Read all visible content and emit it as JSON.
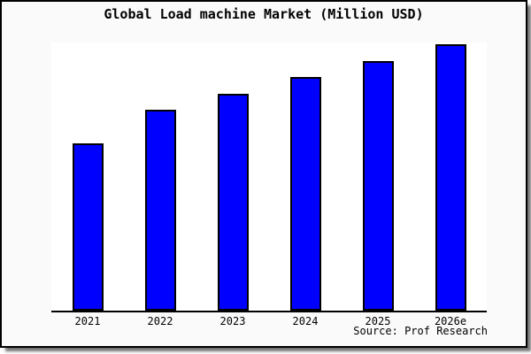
{
  "figure": {
    "title": "Global Load machine Market (Million USD)",
    "source_label": "Source: Prof Research",
    "colors": {
      "bar_fill": "#0000ff",
      "bar_outline": "#000000",
      "plot_background": "#ffffff",
      "figure_background": "#fafafa",
      "frame_border": "#000000",
      "axis_line": "#000000",
      "text": "#000000",
      "shadow": "#888888"
    }
  },
  "chart_data": {
    "type": "bar",
    "title": "Global Load machine Market (Million USD)",
    "categories": [
      "2021",
      "2022",
      "2023",
      "2024",
      "2025",
      "2026e"
    ],
    "values": [
      62.4,
      74.9,
      80.9,
      87.1,
      93.1,
      99.3
    ],
    "xlabel": "",
    "ylabel": "",
    "ylim": [
      0,
      100
    ],
    "y_axis_labels_shown": false,
    "grid": false,
    "legend": false,
    "bar_color": "#0000ff",
    "annotations": [
      "Source: Prof Research"
    ]
  }
}
